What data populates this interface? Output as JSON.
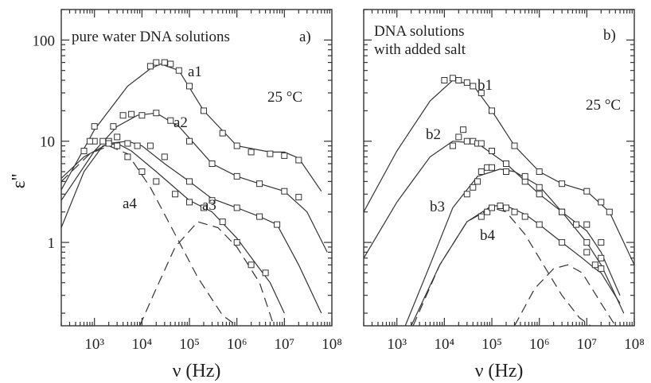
{
  "chart_data": [
    {
      "type": "scatter",
      "panel_label": "a)",
      "title": "pure water DNA solutions",
      "temperature_label": "25 °C",
      "xlabel": "ν  (Hz)",
      "ylabel": "ε''",
      "x_scale": "log",
      "y_scale": "log",
      "xlim": [
        200,
        100000000
      ],
      "ylim": [
        0.15,
        200
      ],
      "x_tick_labels": [
        "10³",
        "10⁴",
        "10⁵",
        "10⁶",
        "10⁷",
        "10⁸"
      ],
      "y_tick_labels": [
        "1",
        "10",
        "100"
      ],
      "series": [
        {
          "name": "a1",
          "x": [
            15000,
            20000,
            30000,
            40000,
            60000,
            100000,
            200000,
            500000,
            1000000,
            2000000,
            5000000,
            10000000,
            20000000
          ],
          "y": [
            55,
            60,
            60,
            58,
            50,
            35,
            20,
            12,
            9,
            7.8,
            7.5,
            7.2,
            6.5
          ],
          "fit": {
            "x": [
              200,
              1000,
              5000,
              15000,
              25000,
              60000,
              200000,
              1000000,
              5000000,
              10000000,
              20000000,
              60000000
            ],
            "y": [
              3.3,
              13,
              35,
              52,
              58,
              50,
              20,
              9,
              7.8,
              7.8,
              6.8,
              3.2
            ]
          }
        },
        {
          "name": "a2",
          "x": [
            2500,
            4000,
            6000,
            10000,
            20000,
            40000,
            100000,
            300000,
            1000000,
            3000000,
            10000000,
            20000000
          ],
          "y": [
            14,
            18,
            18.5,
            18,
            19,
            16,
            10,
            6,
            4.5,
            3.8,
            3.2,
            2.8
          ],
          "fit": {
            "x": [
              200,
              1000,
              3000,
              8000,
              20000,
              60000,
              300000,
              1000000,
              3000000,
              10000000,
              30000000,
              80000000
            ],
            "y": [
              2.6,
              8,
              14,
              18,
              19,
              14,
              6,
              4.5,
              3.8,
              3.2,
              2.0,
              0.8
            ]
          }
        },
        {
          "name": "a3",
          "x": [
            600,
            1000,
            2000,
            3000,
            5000,
            8000,
            15000,
            30000,
            100000,
            300000,
            1000000,
            3000000,
            7000000
          ],
          "y": [
            8,
            10,
            10,
            11,
            9.5,
            9,
            9,
            7,
            4,
            2.6,
            2.2,
            1.8,
            1.5
          ],
          "fit": {
            "x": [
              200,
              600,
              2000,
              5000,
              10000,
              30000,
              100000,
              300000,
              1000000,
              3000000,
              7000000,
              20000000,
              60000000
            ],
            "y": [
              4.3,
              7,
              9.5,
              10,
              9,
              6,
              4,
              2.7,
              2.2,
              1.8,
              1.5,
              0.6,
              0.2
            ]
          }
        },
        {
          "name": "a4",
          "x": [
            600,
            800,
            1000,
            1500,
            2000,
            3000,
            5000,
            10000,
            20000,
            50000,
            100000,
            200000,
            500000,
            1000000,
            2000000,
            4000000
          ],
          "y": [
            8,
            10,
            14,
            10,
            9.5,
            9,
            7,
            5,
            4,
            3,
            2.5,
            2.2,
            1.6,
            1.0,
            0.6,
            0.5
          ],
          "fit": {
            "x": [
              200,
              600,
              1500,
              3000,
              6000,
              20000,
              100000,
              300000,
              1000000,
              3000000,
              5000000,
              10000000
            ],
            "y": [
              1.4,
              5,
              9,
              9.5,
              8,
              5,
              2.6,
              2.0,
              1.1,
              0.55,
              0.4,
              0.2
            ]
          },
          "dashed_components": [
            {
              "x": [
                200,
                800,
                2000,
                5000,
                15000,
                50000,
                150000,
                500000,
                1000000
              ],
              "y": [
                4,
                7.5,
                9,
                7.5,
                3.5,
                1.2,
                0.45,
                0.19,
                0.15
              ]
            },
            {
              "x": [
                9000,
                20000,
                50000,
                150000,
                400000,
                1000000,
                3000000,
                6000000
              ],
              "y": [
                0.15,
                0.35,
                0.9,
                1.6,
                1.4,
                0.9,
                0.4,
                0.15
              ]
            }
          ]
        }
      ]
    },
    {
      "type": "scatter",
      "panel_label": "b)",
      "title": "DNA solutions\nwith added salt",
      "temperature_label": "25 °C",
      "xlabel": "ν  (Hz)",
      "ylabel": "",
      "x_scale": "log",
      "y_scale": "log",
      "xlim": [
        200,
        100000000
      ],
      "ylim": [
        0.15,
        200
      ],
      "x_tick_labels": [
        "10³",
        "10⁴",
        "10⁵",
        "10⁶",
        "10⁷",
        "10⁸"
      ],
      "y_tick_labels": [],
      "series": [
        {
          "name": "b1",
          "x": [
            10000,
            15000,
            20000,
            30000,
            40000,
            60000,
            100000,
            300000,
            1000000,
            3000000,
            10000000,
            20000000,
            30000000
          ],
          "y": [
            40,
            42,
            40,
            38,
            35,
            30,
            20,
            9,
            5,
            3.8,
            3.2,
            2.5,
            2.0
          ],
          "fit": {
            "x": [
              200,
              1000,
              5000,
              15000,
              40000,
              100000,
              300000,
              1000000,
              3000000,
              10000000,
              30000000,
              100000000
            ],
            "y": [
              2.0,
              8,
              25,
              40,
              36,
              20,
              9,
              5,
              3.8,
              3.2,
              2.0,
              0.6
            ]
          }
        },
        {
          "name": "b2",
          "x": [
            15000,
            20000,
            25000,
            30000,
            40000,
            50000,
            60000,
            100000,
            200000,
            500000,
            1000000,
            3000000,
            10000000,
            20000000
          ],
          "y": [
            9,
            11,
            13,
            10,
            10,
            9.5,
            9.5,
            8,
            6,
            4,
            3,
            2.0,
            1.5,
            1.0
          ],
          "fit": {
            "x": [
              200,
              1000,
              5000,
              15000,
              50000,
              200000,
              1000000,
              3000000,
              10000000,
              20000000,
              50000000
            ],
            "y": [
              0.7,
              2.5,
              7,
              10,
              9.5,
              6,
              3,
              2.0,
              1.3,
              0.8,
              0.3
            ]
          }
        },
        {
          "name": "b3",
          "x": [
            30000,
            40000,
            50000,
            60000,
            80000,
            100000,
            200000,
            500000,
            1000000,
            3000000,
            6000000,
            10000000,
            20000000
          ],
          "y": [
            3,
            3.5,
            4,
            5,
            5.5,
            5.5,
            5,
            4.5,
            3.5,
            2.0,
            1.5,
            1.0,
            0.7
          ],
          "fit": {
            "x": [
              1500,
              5000,
              15000,
              50000,
              150000,
              300000,
              1000000,
              3000000,
              10000000,
              20000000,
              60000000
            ],
            "y": [
              0.15,
              0.6,
              2.2,
              4.5,
              5.3,
              5,
              3.6,
              2.0,
              1.0,
              0.6,
              0.2
            ]
          }
        },
        {
          "name": "b4",
          "x": [
            60000,
            80000,
            100000,
            150000,
            200000,
            300000,
            500000,
            1000000,
            3000000,
            10000000,
            15000000,
            20000000
          ],
          "y": [
            1.8,
            2.0,
            2.2,
            2.3,
            2.2,
            2.0,
            1.8,
            1.5,
            1.0,
            0.8,
            0.6,
            0.55
          ],
          "fit": {
            "x": [
              2000,
              8000,
              30000,
              100000,
              200000,
              500000,
              1000000,
              3000000,
              8000000,
              15000000,
              20000000,
              50000000
            ],
            "y": [
              0.15,
              0.6,
              1.6,
              2.3,
              2.3,
              1.9,
              1.5,
              1.0,
              0.7,
              0.55,
              0.5,
              0.25
            ]
          },
          "dashed_components": [
            {
              "x": [
                2200,
                8000,
                30000,
                100000,
                200000,
                500000,
                1000000,
                3000000,
                7000000,
                12000000
              ],
              "y": [
                0.15,
                0.6,
                1.6,
                2.2,
                2.0,
                1.2,
                0.7,
                0.3,
                0.18,
                0.15
              ]
            },
            {
              "x": [
                300000,
                800000,
                2000000,
                4000000,
                8000000,
                20000000,
                40000000
              ],
              "y": [
                0.15,
                0.35,
                0.55,
                0.6,
                0.5,
                0.25,
                0.15
              ]
            }
          ]
        }
      ]
    }
  ]
}
